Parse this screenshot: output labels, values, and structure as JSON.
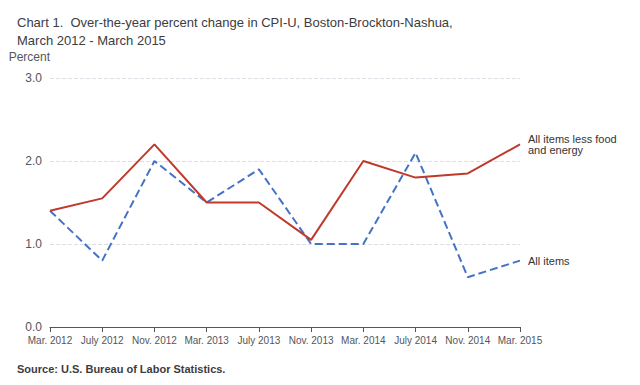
{
  "chart_data": {
    "type": "line",
    "title": "Chart 1.  Over-the-year percent change in CPI-U, Boston-Brockton-Nashua,\nMarch 2012 - March 2015",
    "ylabel": "Percent",
    "source": "Source: U.S. Bureau of Labor Statistics.",
    "categories": [
      "Mar. 2012",
      "July 2012",
      "Nov. 2012",
      "Mar. 2013",
      "July 2013",
      "Nov. 2013",
      "Mar. 2014",
      "July 2014",
      "Nov. 2014",
      "Mar. 2015"
    ],
    "series": [
      {
        "name": "All items",
        "color": "#4472c4",
        "line_style": "dashed",
        "values": [
          1.4,
          0.8,
          2.0,
          1.5,
          1.9,
          1.0,
          1.0,
          2.1,
          0.6,
          0.8
        ]
      },
      {
        "name": "All items less food and energy",
        "color": "#c0392b",
        "line_style": "solid",
        "values": [
          1.4,
          1.55,
          2.2,
          1.5,
          1.5,
          1.05,
          2.0,
          1.8,
          1.85,
          2.2
        ]
      }
    ],
    "ylim": [
      0.0,
      3.0
    ],
    "yticks": [
      {
        "value": 0,
        "label": "0.0"
      },
      {
        "value": 1,
        "label": "1.0"
      },
      {
        "value": 2,
        "label": "2.0"
      },
      {
        "value": 3,
        "label": "3.0"
      }
    ],
    "grid": true
  }
}
